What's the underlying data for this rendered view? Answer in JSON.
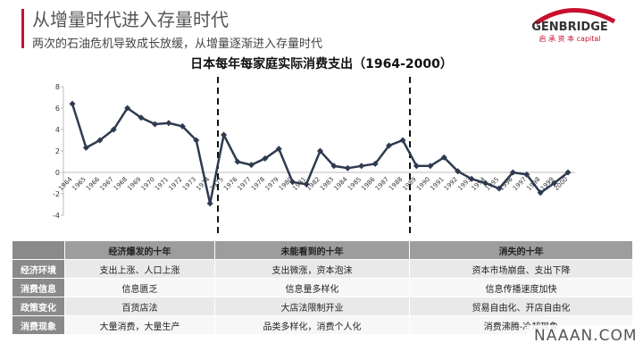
{
  "header": {
    "title": "从增量时代进入存量时代",
    "subtitle": "两次的石油危机导致成长放缓，从增量逐渐进入存量时代"
  },
  "logo": {
    "name": "GENBRIDGE",
    "tagline": "启 承 资 本 capital"
  },
  "chart_data": {
    "type": "line",
    "title": "日本每年每家庭实际消费支出（1964-2000）",
    "x": [
      1964,
      1965,
      1966,
      1967,
      1968,
      1969,
      1970,
      1971,
      1972,
      1973,
      1974,
      1975,
      1976,
      1977,
      1978,
      1979,
      1980,
      1981,
      1982,
      1983,
      1984,
      1985,
      1986,
      1987,
      1988,
      1989,
      1990,
      1991,
      1992,
      1993,
      1994,
      1995,
      1996,
      1997,
      1998,
      1999,
      2000
    ],
    "series": [
      {
        "name": "实际消费支出",
        "color": "#2e3a4f",
        "values": [
          6.4,
          2.3,
          3.0,
          4.0,
          6.0,
          5.1,
          4.5,
          4.6,
          4.3,
          3.0,
          -2.9,
          3.5,
          1.0,
          0.7,
          1.3,
          2.2,
          -0.9,
          -1.1,
          2.0,
          0.6,
          0.4,
          0.6,
          0.8,
          2.5,
          3.0,
          0.6,
          0.6,
          1.4,
          0.1,
          -0.6,
          -1.0,
          -1.5,
          0.0,
          -0.2,
          -1.9,
          -1.0,
          0.0
        ]
      }
    ],
    "xlim": [
      1964,
      2000
    ],
    "ylim": [
      -4,
      8
    ],
    "yticks": [
      8,
      6,
      4,
      2,
      0,
      -2,
      -4
    ]
  },
  "table": {
    "header": [
      "经济爆发的十年",
      "未能看到的十年",
      "消失的十年"
    ],
    "rows": [
      [
        "经济环境",
        "支出上涨、人口上涨",
        "支出微涨，资本泡沫",
        "资本市场崩盘、支出下降"
      ],
      [
        "消费信息",
        "信息匮乏",
        "信息量多样化",
        "信息传播速度加快"
      ],
      [
        "政策变化",
        "百货店法",
        "大店法限制开业",
        "贸易自由化、开店自由化"
      ],
      [
        "消费现象",
        "大量消费，大量生产",
        "品类多样化，消费个人化",
        "消费沸腾-冷却现象"
      ]
    ]
  },
  "watermark": "NAAAN.COM"
}
